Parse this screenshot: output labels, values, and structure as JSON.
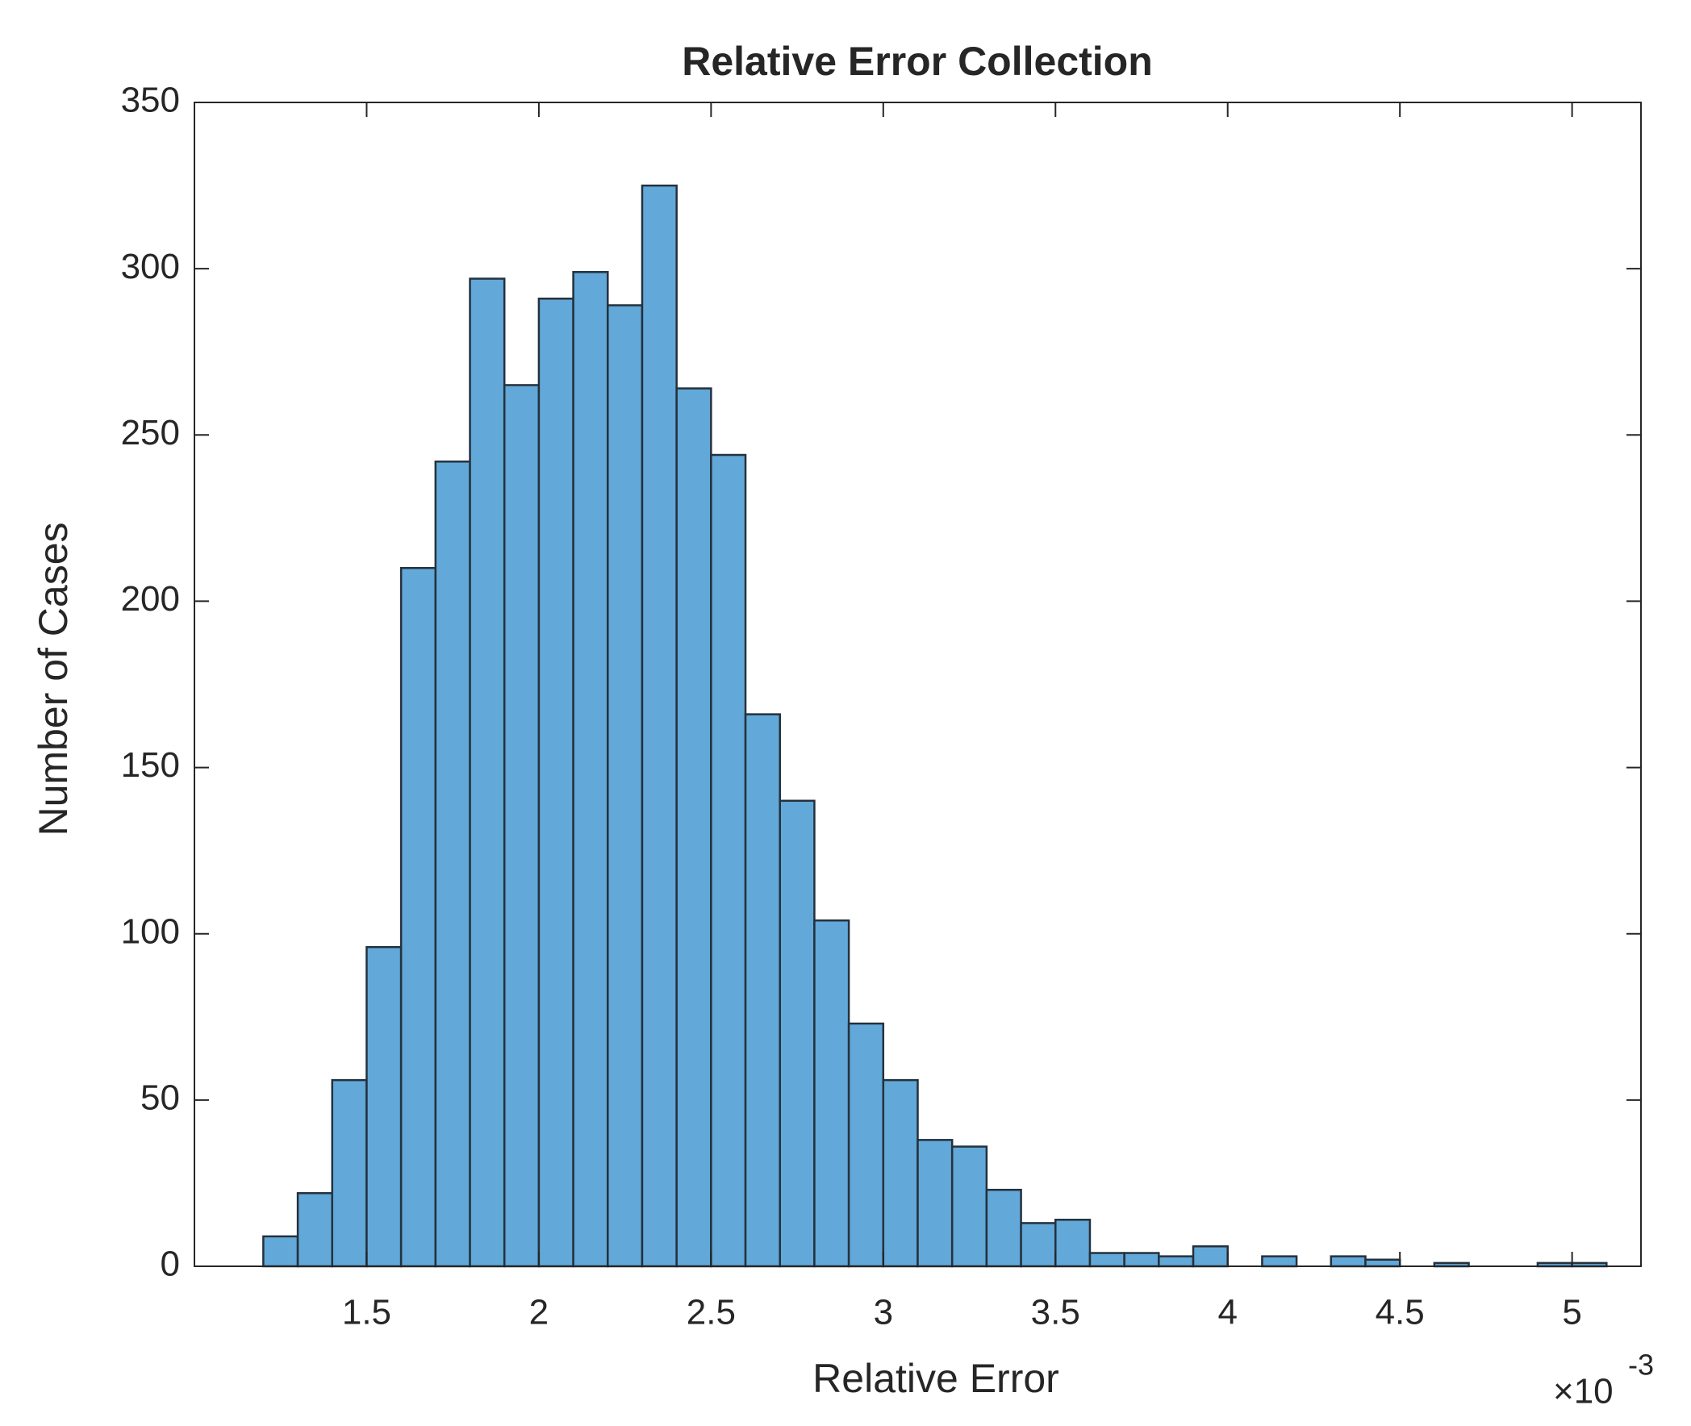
{
  "chart_data": {
    "type": "histogram",
    "title": "Relative Error Collection",
    "x_label": "Relative Error",
    "y_label": "Number of Cases",
    "x_scale_label": {
      "base": "×10",
      "exponent": "-3"
    },
    "bins": [
      1.2,
      1.3,
      1.4,
      1.5,
      1.6,
      1.7,
      1.8,
      1.9,
      2.0,
      2.1,
      2.2,
      2.3,
      2.4,
      2.5,
      2.6,
      2.7,
      2.8,
      2.9,
      3.0,
      3.1,
      3.2,
      3.3,
      3.4,
      3.5,
      3.6,
      3.7,
      3.8,
      3.9,
      4.0,
      4.1,
      4.2,
      4.3,
      4.4,
      4.5,
      4.6,
      4.7,
      4.8,
      4.9,
      5.0,
      5.1
    ],
    "values": [
      9,
      22,
      56,
      96,
      210,
      242,
      297,
      265,
      291,
      299,
      289,
      325,
      264,
      244,
      166,
      140,
      104,
      73,
      56,
      38,
      36,
      23,
      13,
      14,
      4,
      4,
      3,
      6,
      0,
      3,
      0,
      3,
      2,
      0,
      1,
      0,
      0,
      1,
      1
    ],
    "color": "#62a8d8",
    "edge_color": "#24313d",
    "xlim": [
      1.0,
      5.2
    ],
    "xticks": [
      1.5,
      2,
      2.5,
      3,
      3.5,
      4,
      4.5,
      5
    ],
    "ylim": [
      0,
      350
    ],
    "yticks": [
      0,
      50,
      100,
      150,
      200,
      250,
      300,
      350
    ],
    "grid": false
  }
}
